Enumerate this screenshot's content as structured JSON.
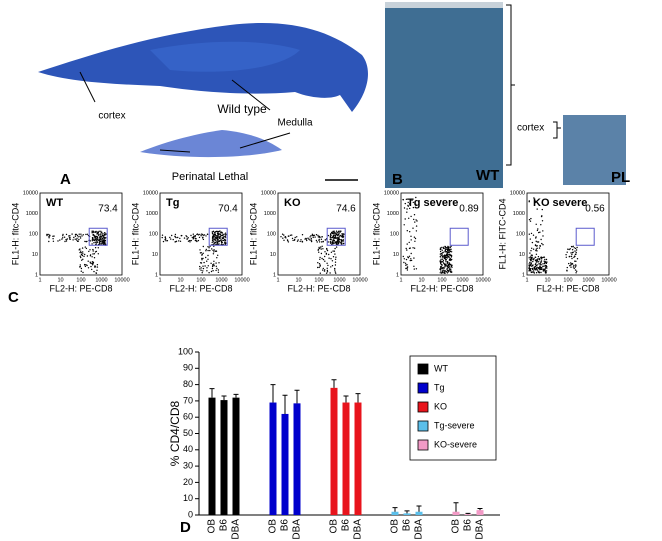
{
  "panel_a": {
    "label": "A",
    "cortex": "cortex",
    "wild_type": "Wild type",
    "medulla": "Medulla",
    "perinatal_lethal": "Perinatal Lethal"
  },
  "panel_b": {
    "label": "B",
    "wt": "WT",
    "cortex": "cortex",
    "pl": "PL"
  },
  "panel_c": {
    "label": "C",
    "axis_ticks": [
      "1",
      "10",
      "100",
      "1000",
      "10000"
    ],
    "x_label": "FL2-H: PE-CD8",
    "plots": [
      {
        "title": "WT",
        "percent": "73.4",
        "y_label": "FL1-H: fitc-CD4"
      },
      {
        "title": "Tg",
        "percent": "70.4",
        "y_label": "FL1-H: fitc-CD4"
      },
      {
        "title": "KO",
        "percent": "74.6",
        "y_label": "FL1-H: fitc-CD4"
      },
      {
        "title": "Tg severe",
        "percent": "0.89",
        "y_label": "FL1-H: fitc-CD4"
      },
      {
        "title": "KO severe",
        "percent": "0.56",
        "y_label": "FL1-H: FITC-CD4"
      }
    ]
  },
  "chart_data": {
    "type": "bar",
    "panel_label": "D",
    "y_label": "% CD4/CD8",
    "categories": [
      "OB",
      "B6",
      "DBA"
    ],
    "series": [
      {
        "name": "WT",
        "color": "#000000",
        "values": [
          72,
          70.5,
          72
        ],
        "errors": [
          5.5,
          2.5,
          2
        ]
      },
      {
        "name": "Tg",
        "color": "#0000cc",
        "values": [
          69,
          62,
          68.5
        ],
        "errors": [
          11,
          11.5,
          8
        ]
      },
      {
        "name": "KO",
        "color": "#e8141c",
        "values": [
          78,
          69,
          69
        ],
        "errors": [
          5,
          4,
          5.5
        ]
      },
      {
        "name": "Tg-severe",
        "color": "#5bbfea",
        "values": [
          2,
          1,
          2
        ],
        "errors": [
          2.5,
          1.5,
          3.5
        ]
      },
      {
        "name": "KO-severe",
        "color": "#f29ac6",
        "values": [
          2,
          0.5,
          3
        ],
        "errors": [
          5.5,
          0.5,
          1
        ]
      }
    ],
    "ylim": [
      0,
      100
    ],
    "yticks": [
      0,
      10,
      20,
      30,
      40,
      50,
      60,
      70,
      80,
      90,
      100
    ]
  }
}
